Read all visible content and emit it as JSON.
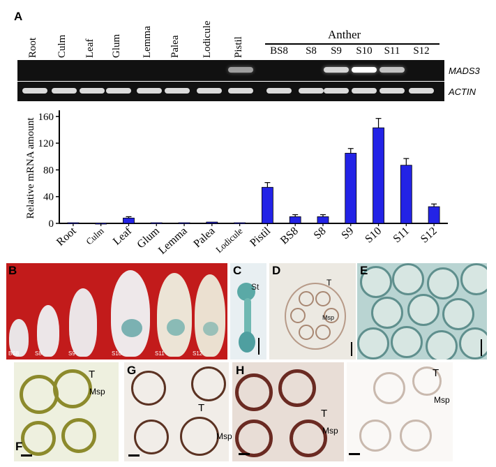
{
  "panel_a": {
    "letter": "A",
    "lanes": [
      "Root",
      "Culm",
      "Leaf",
      "Glum",
      "Lemma",
      "Palea",
      "Lodicule",
      "Pistil"
    ],
    "anther_header": "Anther",
    "anther_stages": [
      "BS8",
      "S8",
      "S9",
      "S10",
      "S11",
      "S12"
    ],
    "genes": [
      "MADS3",
      "ACTIN"
    ]
  },
  "chart_data": {
    "type": "bar",
    "categories": [
      "Root",
      "Culm",
      "Leaf",
      "Glum",
      "Lemma",
      "Palea",
      "Lodicule",
      "Pistil",
      "BS8",
      "S8",
      "S9",
      "S10",
      "S11",
      "S12"
    ],
    "values": [
      1,
      0.5,
      8,
      1,
      1,
      2,
      1,
      54,
      10,
      10,
      105,
      143,
      87,
      25
    ],
    "errors": [
      0.5,
      0.3,
      2,
      0.5,
      0.5,
      0.5,
      0.5,
      7,
      3,
      3,
      7,
      14,
      10,
      4
    ],
    "ylabel": "Relative mRNA amount",
    "yticks": [
      0,
      40,
      80,
      120,
      160
    ],
    "ylim": [
      0,
      165
    ],
    "bar_color": "#2323e6"
  },
  "panels": {
    "B": {
      "letter": "B",
      "stages": [
        "BS8",
        "S8",
        "S9",
        "S10",
        "S11",
        "S12"
      ]
    },
    "C": {
      "letter": "C",
      "st": "St"
    },
    "D": {
      "letter": "D",
      "t": "T",
      "msp": "Msp"
    },
    "E": {
      "letter": "E"
    },
    "F": {
      "letter": "F",
      "t": "T",
      "msp": "Msp"
    },
    "G": {
      "letter": "G",
      "t": "T",
      "msp": "Msp"
    },
    "H": {
      "letter": "H",
      "t": "T",
      "msp": "Msp"
    },
    "I": {
      "t": "T",
      "msp": "Msp"
    }
  }
}
